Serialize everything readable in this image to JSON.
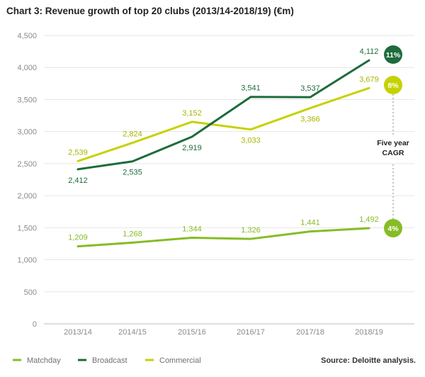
{
  "chart_data": {
    "type": "line",
    "title": "Chart 3: Revenue growth of top 20 clubs (2013/14-2018/19) (€m)",
    "categories": [
      "2013/14",
      "2014/15",
      "2015/16",
      "2016/17",
      "2017/18",
      "2018/19"
    ],
    "ylim": [
      0,
      4500
    ],
    "yticks": [
      "0",
      "500",
      "1,000",
      "1,500",
      "2,000",
      "2,500",
      "3,000",
      "3,500",
      "4,000",
      "4,500"
    ],
    "grid": true,
    "legend_position": "bottom-left",
    "series": [
      {
        "name": "Matchday",
        "color": "#86bc25",
        "values": [
          1209,
          1268,
          1344,
          1326,
          1441,
          1492
        ],
        "labels": [
          "1,209",
          "1,268",
          "1,344",
          "1,326",
          "1,441",
          "1,492"
        ],
        "label_pos": [
          "above",
          "above",
          "above",
          "above",
          "above",
          "above"
        ],
        "cagr": "4%"
      },
      {
        "name": "Broadcast",
        "color": "#1e6b3c",
        "values": [
          2412,
          2535,
          2919,
          3541,
          3537,
          4112
        ],
        "labels": [
          "2,412",
          "2,535",
          "2,919",
          "3,541",
          "3,537",
          "4,112"
        ],
        "label_pos": [
          "below",
          "below",
          "below",
          "above",
          "above",
          "above"
        ],
        "cagr": "11%"
      },
      {
        "name": "Commercial",
        "color": "#c5d200",
        "values": [
          2539,
          2824,
          3152,
          3033,
          3366,
          3679
        ],
        "labels": [
          "2,539",
          "2,824",
          "3,152",
          "3,033",
          "3,366",
          "3,679"
        ],
        "label_pos": [
          "above",
          "above",
          "above",
          "below",
          "below",
          "above"
        ],
        "cagr": "8%"
      }
    ],
    "cagr_label_line1": "Five year",
    "cagr_label_line2": "CAGR",
    "source": "Source: Deloitte analysis."
  }
}
